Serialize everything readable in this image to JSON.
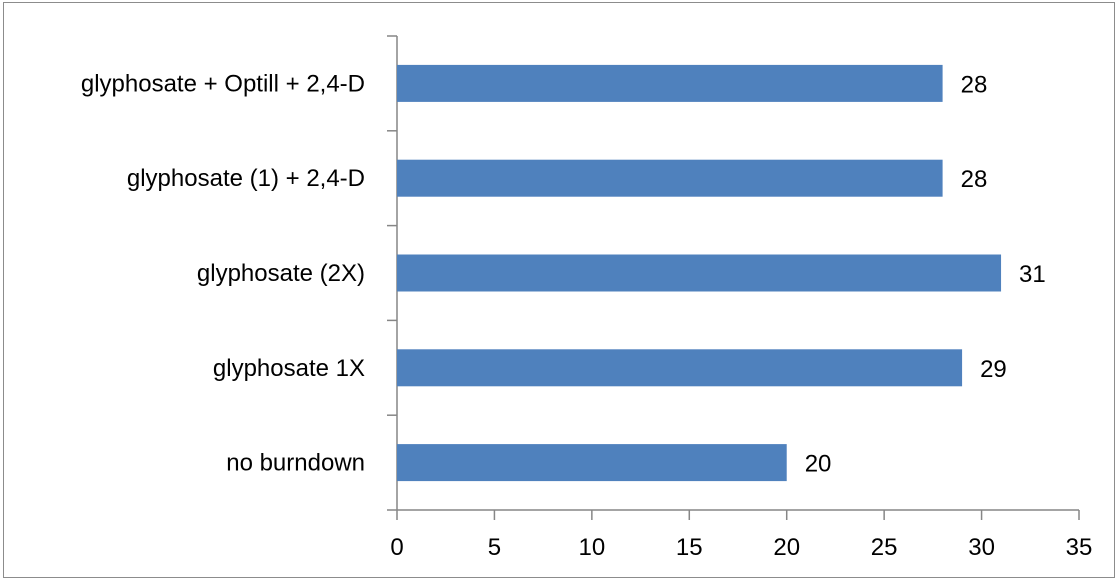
{
  "chart_data": {
    "type": "bar",
    "orientation": "horizontal",
    "categories": [
      "glyphosate + Optill + 2,4-D",
      "glyphosate (1) + 2,4-D",
      "glyphosate (2X)",
      "glyphosate 1X",
      "no burndown"
    ],
    "values": [
      28,
      28,
      31,
      29,
      20
    ],
    "value_labels": [
      "28",
      "28",
      "31",
      "29",
      "20"
    ],
    "xlim": [
      0,
      35
    ],
    "x_ticks": [
      0,
      5,
      10,
      15,
      20,
      25,
      30,
      35
    ],
    "x_tick_labels": [
      "0",
      "5",
      "10",
      "15",
      "20",
      "25",
      "30",
      "35"
    ],
    "bar_color": "#4f81bd",
    "grid": false,
    "legend": "none",
    "title": "",
    "xlabel": "",
    "ylabel": ""
  }
}
